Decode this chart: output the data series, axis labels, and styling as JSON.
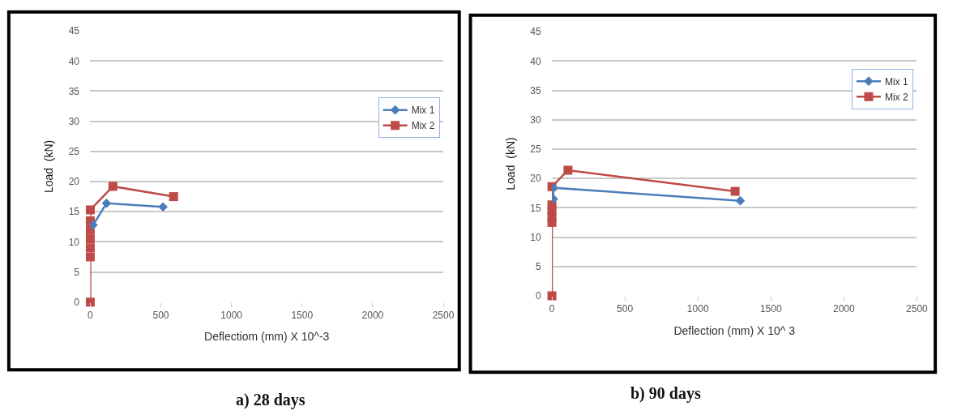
{
  "chart_data": [
    {
      "type": "line",
      "title": "a) 28 days",
      "xlabel": "Deflectiom (mm) X 10^-3",
      "ylabel": "Load  (kN)",
      "xlim": [
        0,
        2500
      ],
      "xticks": [
        0,
        500,
        1000,
        1500,
        2000,
        2500
      ],
      "ylim": [
        0,
        45
      ],
      "yticks": [
        0,
        5,
        10,
        15,
        20,
        25,
        30,
        35,
        40,
        45
      ],
      "grid": "y",
      "legend": "right",
      "series": [
        {
          "name": "Mix 1",
          "color": "#4a7ebb",
          "marker": "diamond",
          "x": [
            20,
            115,
            515
          ],
          "values": [
            12.8,
            16.4,
            15.8
          ]
        },
        {
          "name": "Mix 2",
          "color": "#be4b48",
          "marker": "square",
          "x": [
            0,
            0,
            0,
            0,
            0,
            0,
            0,
            160,
            590
          ],
          "values": [
            0,
            7.5,
            9,
            10.5,
            12,
            13.5,
            15.3,
            19.2,
            17.5
          ]
        }
      ]
    },
    {
      "type": "line",
      "title": "b) 90 days",
      "xlabel": "Deflection (mm) X 10^ 3",
      "ylabel": "Load  (kN)",
      "xlim": [
        0,
        2500
      ],
      "xticks": [
        0,
        500,
        1000,
        1500,
        2000,
        2500
      ],
      "ylim": [
        0,
        45
      ],
      "yticks": [
        0,
        5,
        10,
        15,
        20,
        25,
        30,
        35,
        40,
        45
      ],
      "grid": "y",
      "legend": "top right",
      "series": [
        {
          "name": "Mix 1",
          "color": "#4a7ebb",
          "marker": "diamond",
          "x": [
            10,
            10,
            1290
          ],
          "values": [
            16.5,
            18.4,
            16.2
          ]
        },
        {
          "name": "Mix 2",
          "color": "#be4b48",
          "marker": "square",
          "x": [
            0,
            0,
            0,
            0,
            0,
            0,
            110,
            1255
          ],
          "values": [
            0,
            12.5,
            13.5,
            14.5,
            15.5,
            18.6,
            21.4,
            17.8
          ]
        }
      ]
    }
  ]
}
